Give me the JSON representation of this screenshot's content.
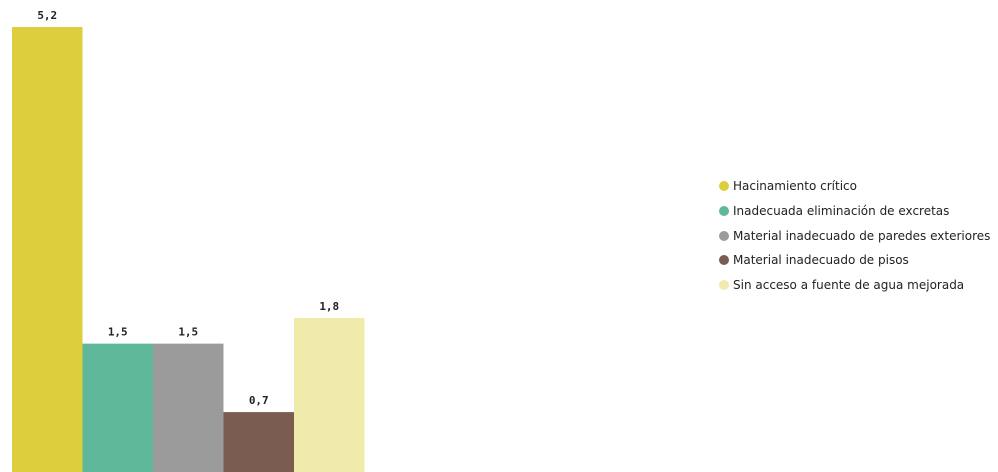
{
  "chart_data": {
    "type": "bar",
    "categories": [
      "Hacinamiento crítico",
      "Inadecuada eliminación de excretas",
      "Material inadecuado de paredes exteriores",
      "Material inadecuado de pisos",
      "Sin acceso a fuente de agua mejorada"
    ],
    "values": [
      5.2,
      1.5,
      1.5,
      0.7,
      1.8
    ],
    "data_labels": [
      "5,2",
      "1,5",
      "1,5",
      "0,7",
      "1,8"
    ],
    "colors": [
      "#DCCE3C",
      "#5FB89A",
      "#9B9B9B",
      "#7A5C50",
      "#F0EBAA"
    ],
    "ylim": [
      0,
      5.2
    ],
    "grid": false,
    "legend_position": "right",
    "title": "",
    "xlabel": "",
    "ylabel": ""
  },
  "legend": {
    "items": [
      {
        "label": "Hacinamiento crítico",
        "color": "#DCCE3C"
      },
      {
        "label": "Inadecuada eliminación de excretas",
        "color": "#5FB89A"
      },
      {
        "label": "Material inadecuado de paredes exteriores",
        "color": "#9B9B9B"
      },
      {
        "label": "Material inadecuado de pisos",
        "color": "#7A5C50"
      },
      {
        "label": "Sin acceso a fuente de agua mejorada",
        "color": "#F0EBAA"
      }
    ]
  }
}
